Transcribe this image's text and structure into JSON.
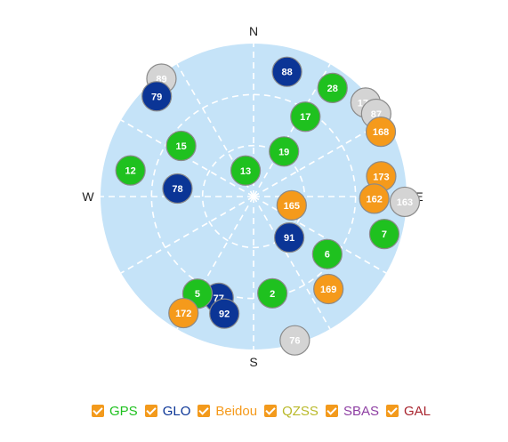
{
  "compass": {
    "north": "N",
    "south": "S",
    "east": "E",
    "west": "W"
  },
  "colors": {
    "sky": "#c5e3f8",
    "grid": "#ffffff",
    "GPS": "#1fc11f",
    "GLO": "#0b3596",
    "Beidou": "#f59a1b",
    "QZSS": "#d4d4d4",
    "SBAS": "#8e3fa3",
    "GAL": "#a8242e",
    "checkbox": "#f39a1c"
  },
  "legend": [
    {
      "key": "GPS",
      "label": "GPS",
      "checked": true
    },
    {
      "key": "GLO",
      "label": "GLO",
      "checked": true
    },
    {
      "key": "Beidou",
      "label": "Beidou",
      "checked": true
    },
    {
      "key": "QZSS",
      "label": "QZSS",
      "checked": true
    },
    {
      "key": "SBAS",
      "label": "SBAS",
      "checked": true
    },
    {
      "key": "GAL",
      "label": "GAL",
      "checked": true
    }
  ],
  "satellites": [
    {
      "id": "89",
      "system": "QZSS",
      "azimuth": 322,
      "elevation": 2
    },
    {
      "id": "79",
      "system": "GLO",
      "azimuth": 316,
      "elevation": 8
    },
    {
      "id": "88",
      "system": "GLO",
      "azimuth": 15,
      "elevation": 14
    },
    {
      "id": "28",
      "system": "GPS",
      "azimuth": 36,
      "elevation": 11
    },
    {
      "id": "170",
      "system": "QZSS",
      "azimuth": 50,
      "elevation": 4
    },
    {
      "id": "87",
      "system": "QZSS",
      "azimuth": 56,
      "elevation": 3
    },
    {
      "id": "168",
      "system": "Beidou",
      "azimuth": 63,
      "elevation": 6
    },
    {
      "id": "17",
      "system": "GPS",
      "azimuth": 33,
      "elevation": 34
    },
    {
      "id": "15",
      "system": "GPS",
      "azimuth": 305,
      "elevation": 38
    },
    {
      "id": "19",
      "system": "GPS",
      "azimuth": 34,
      "elevation": 58
    },
    {
      "id": "13",
      "system": "GPS",
      "azimuth": 343,
      "elevation": 74
    },
    {
      "id": "12",
      "system": "GPS",
      "azimuth": 282,
      "elevation": 16
    },
    {
      "id": "78",
      "system": "GLO",
      "azimuth": 276,
      "elevation": 45
    },
    {
      "id": "173",
      "system": "Beidou",
      "azimuth": 81,
      "elevation": 14
    },
    {
      "id": "163",
      "system": "QZSS",
      "azimuth": 92,
      "elevation": 1
    },
    {
      "id": "162",
      "system": "Beidou",
      "azimuth": 91,
      "elevation": 19
    },
    {
      "id": "165",
      "system": "Beidou",
      "azimuth": 103,
      "elevation": 67
    },
    {
      "id": "91",
      "system": "GLO",
      "azimuth": 139,
      "elevation": 58
    },
    {
      "id": "7",
      "system": "GPS",
      "azimuth": 106,
      "elevation": 10
    },
    {
      "id": "6",
      "system": "GPS",
      "azimuth": 128,
      "elevation": 35
    },
    {
      "id": "169",
      "system": "Beidou",
      "azimuth": 141,
      "elevation": 20
    },
    {
      "id": "2",
      "system": "GPS",
      "azimuth": 169,
      "elevation": 32
    },
    {
      "id": "76",
      "system": "QZSS",
      "azimuth": 164,
      "elevation": 2
    },
    {
      "id": "77",
      "system": "GLO",
      "azimuth": 199,
      "elevation": 27
    },
    {
      "id": "5",
      "system": "GPS",
      "azimuth": 210,
      "elevation": 24
    },
    {
      "id": "92",
      "system": "GLO",
      "azimuth": 194,
      "elevation": 19
    },
    {
      "id": "172",
      "system": "Beidou",
      "azimuth": 211,
      "elevation": 10
    }
  ]
}
